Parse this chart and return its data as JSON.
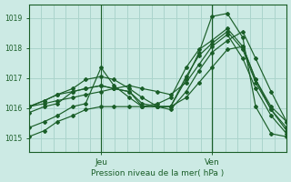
{
  "background_color": "#cceae4",
  "grid_color": "#aad4cc",
  "line_color": "#1a5e28",
  "marker_color": "#1a5e28",
  "ylabel_ticks": [
    1015,
    1016,
    1017,
    1018,
    1019
  ],
  "xlabel": "Pression niveau de la mer( hPa )",
  "x_day_labels": [
    [
      "Jeu",
      0.28
    ],
    [
      "Ven",
      0.71
    ]
  ],
  "ylim": [
    1014.55,
    1019.45
  ],
  "xlim": [
    0.0,
    1.0
  ],
  "series": [
    {
      "x": [
        0.0,
        0.06,
        0.11,
        0.17,
        0.22,
        0.28,
        0.33,
        0.39,
        0.44,
        0.5,
        0.55,
        0.61,
        0.66,
        0.71,
        0.77,
        0.83,
        0.88,
        0.94,
        1.0
      ],
      "y": [
        1015.35,
        1015.55,
        1015.75,
        1016.05,
        1016.15,
        1017.35,
        1016.75,
        1016.35,
        1016.05,
        1016.05,
        1016.05,
        1016.95,
        1017.85,
        1019.05,
        1019.15,
        1018.35,
        1016.05,
        1015.15,
        1015.05
      ]
    },
    {
      "x": [
        0.0,
        0.06,
        0.11,
        0.17,
        0.22,
        0.28,
        0.33,
        0.39,
        0.44,
        0.5,
        0.55,
        0.61,
        0.66,
        0.71,
        0.77,
        0.83,
        0.88,
        0.94,
        1.0
      ],
      "y": [
        1016.05,
        1016.15,
        1016.25,
        1016.35,
        1016.45,
        1016.55,
        1016.65,
        1016.75,
        1016.65,
        1016.55,
        1016.45,
        1016.85,
        1017.45,
        1018.05,
        1018.45,
        1017.65,
        1016.65,
        1015.75,
        1015.15
      ]
    },
    {
      "x": [
        0.0,
        0.06,
        0.11,
        0.17,
        0.22,
        0.28,
        0.33,
        0.39,
        0.44,
        0.5,
        0.55,
        0.61,
        0.66,
        0.71,
        0.77,
        0.83,
        0.88,
        0.94,
        1.0
      ],
      "y": [
        1016.05,
        1016.25,
        1016.45,
        1016.55,
        1016.65,
        1016.75,
        1016.65,
        1016.55,
        1016.15,
        1016.05,
        1016.05,
        1017.05,
        1017.75,
        1018.15,
        1018.55,
        1017.95,
        1016.85,
        1015.95,
        1015.35
      ]
    },
    {
      "x": [
        0.0,
        0.06,
        0.11,
        0.17,
        0.22,
        0.28,
        0.33,
        0.39,
        0.44,
        0.5,
        0.55,
        0.61,
        0.66,
        0.71,
        0.77,
        0.83,
        0.88,
        0.94,
        1.0
      ],
      "y": [
        1015.85,
        1016.05,
        1016.15,
        1016.55,
        1016.65,
        1016.75,
        1016.65,
        1016.55,
        1016.05,
        1016.15,
        1016.35,
        1017.35,
        1017.95,
        1018.25,
        1018.65,
        1018.05,
        1016.95,
        1016.05,
        1015.55
      ]
    },
    {
      "x": [
        0.0,
        0.06,
        0.11,
        0.17,
        0.22,
        0.28,
        0.33,
        0.39,
        0.44,
        0.5,
        0.55,
        0.61,
        0.66,
        0.71,
        0.77,
        0.83,
        0.88,
        0.94,
        1.0
      ],
      "y": [
        1015.05,
        1015.25,
        1015.55,
        1015.75,
        1015.95,
        1016.05,
        1016.05,
        1016.05,
        1016.05,
        1016.05,
        1016.05,
        1016.35,
        1016.85,
        1017.35,
        1017.95,
        1018.05,
        1016.95,
        1015.95,
        1015.25
      ]
    },
    {
      "x": [
        0.0,
        0.06,
        0.11,
        0.17,
        0.22,
        0.28,
        0.33,
        0.39,
        0.44,
        0.5,
        0.55,
        0.61,
        0.66,
        0.71,
        0.77,
        0.83,
        0.88,
        0.94,
        1.0
      ],
      "y": [
        1016.05,
        1016.25,
        1016.45,
        1016.65,
        1016.95,
        1017.05,
        1016.95,
        1016.65,
        1016.35,
        1016.05,
        1015.95,
        1016.55,
        1017.25,
        1017.85,
        1018.25,
        1018.55,
        1017.65,
        1016.55,
        1015.55
      ]
    }
  ]
}
